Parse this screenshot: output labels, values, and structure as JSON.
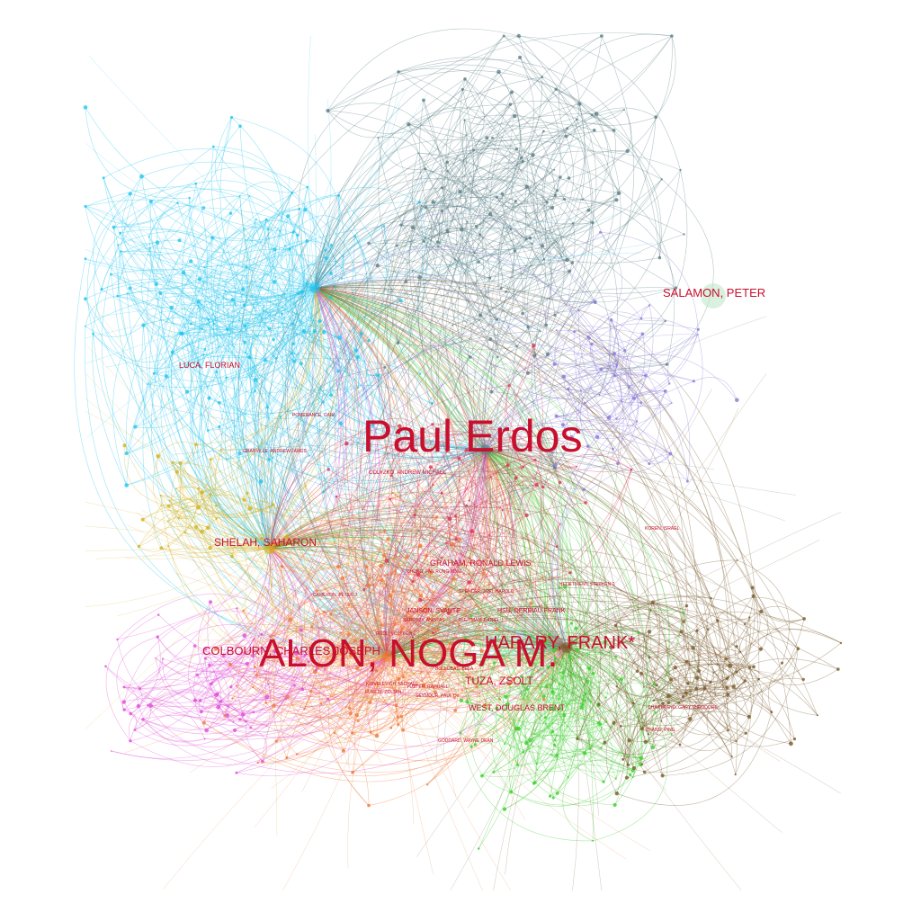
{
  "colors": {
    "label": "#c8102e",
    "clusters": {
      "cyan": "#22c5ee",
      "grey_teal": "#5c7f86",
      "orange": "#ef7b3a",
      "green": "#3fcf2e",
      "brown": "#7a5a2c",
      "magenta": "#e04fd6",
      "yellow": "#d4b21e",
      "violet": "#8a7ad8",
      "red": "#d9364f"
    }
  },
  "labels": {
    "paul_erdos": "Paul Erdos",
    "alon": "ALON, NOGA M.",
    "harary": "HARARY, FRANK*",
    "colbourn": "COLBOURN, CHARLES JOSEPH",
    "salamon": "SALAMON, PETER",
    "shelah": "SHELAH, SAHARON",
    "tuza": "TUZA, ZSOLT",
    "luca": "LUCA, FLORIAN",
    "graham": "GRAHAM, RONALD LEWIS",
    "west": "WEST, DOUGLAS BRENT",
    "hedetniemi": "HEDETNIEMI, STEPHEN T.",
    "odlyzko": "ODLYZKO, ANDREW MICHAEL",
    "pomerance": "POMERANCE, CARL",
    "spencer": "SPENCER, JOEL HAROLD",
    "janson": "JANSON, SVANTE",
    "hsu": "HSU, DERBIAU FRANK",
    "kleitman": "KLEITMAN, DANIEL J.",
    "rodl": "RODL, VOJTECH",
    "cameron": "CAMERON, PETER J.",
    "bollobas": "BOLLOBAS, BELA",
    "sarkozy": "SARKOZY, ANDRAS",
    "krivelevich": "KRIVELEVICH, MICHAEL",
    "furedi": "FUREDI, ZOLTAN",
    "yuster": "YUSTER, RAPHAEL",
    "seymour": "SEYMOUR, PAUL D.",
    "kohayakawa": "KOHAYAKAWA, YOSHIHARU",
    "goddard": "GODDARD, WAYNE DEAN",
    "chartrand": "CHARTRAND, GARY THEODORE",
    "koren": "KOREN, ISRAEL",
    "chung": "CHUNG, FAN RONG KING",
    "ouyang": "GRANVILLE, ANDREW JAMES",
    "zhang": "ZHANG, PING"
  }
}
